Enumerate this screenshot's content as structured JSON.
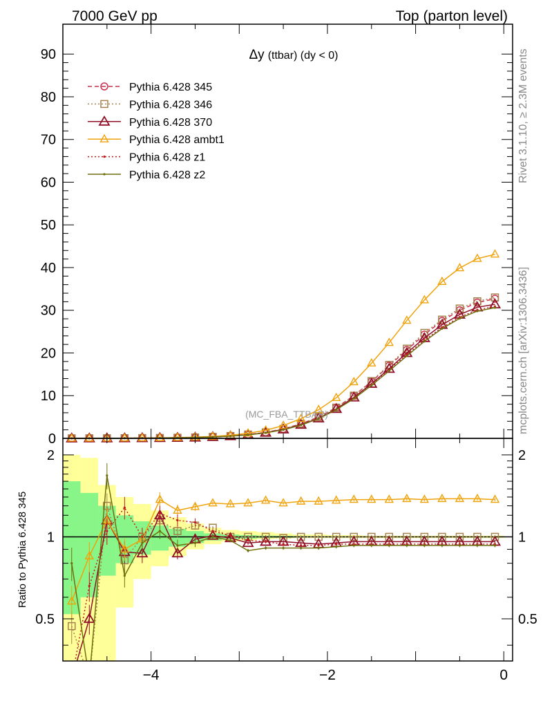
{
  "header": {
    "energy_label": "7000 GeV pp",
    "process_label": "Top (parton level)"
  },
  "side": {
    "rivet_label": "Rivet 3.1.10, ≥ 2.3M events",
    "source_label": "mcplots.cern.ch [arXiv:1306.3436]"
  },
  "watermark": "(MC_FBA_TTBAR)",
  "colors": {
    "s345": "#c82e4d",
    "s346": "#a5814d",
    "s370": "#8e0f26",
    "ambt1": "#f0a20b",
    "z1": "#c0191d",
    "z2": "#6f6f0e",
    "band_yellow": "#ffff99",
    "band_green": "#88f588"
  },
  "chart_data": [
    {
      "type": "line",
      "title": "Δy",
      "title_suffix": "(ttbar) (dy < 0)",
      "xlabel": "",
      "ylabel": "",
      "xlim": [
        -5,
        0.1
      ],
      "ylim": [
        0,
        97
      ],
      "yticks": [
        0,
        10,
        20,
        30,
        40,
        50,
        60,
        70,
        80,
        90
      ],
      "x": [
        -4.9,
        -4.7,
        -4.5,
        -4.3,
        -4.1,
        -3.9,
        -3.7,
        -3.5,
        -3.3,
        -3.1,
        -2.9,
        -2.7,
        -2.5,
        -2.3,
        -2.1,
        -1.9,
        -1.7,
        -1.5,
        -1.3,
        -1.1,
        -0.9,
        -0.7,
        -0.5,
        -0.3,
        -0.1
      ],
      "series": [
        {
          "name": "Pythia 6.428 345",
          "key": "s345",
          "values": [
            0.01,
            0.02,
            0.03,
            0.04,
            0.07,
            0.1,
            0.15,
            0.22,
            0.35,
            0.55,
            0.9,
            1.4,
            2.2,
            3.4,
            5.0,
            7.2,
            10.0,
            13.3,
            17.0,
            20.7,
            24.3,
            27.5,
            30.0,
            31.8,
            32.7
          ]
        },
        {
          "name": "Pythia 6.428 346",
          "key": "s346",
          "values": [
            0.01,
            0.02,
            0.03,
            0.04,
            0.07,
            0.1,
            0.15,
            0.22,
            0.35,
            0.55,
            0.9,
            1.4,
            2.2,
            3.4,
            5.0,
            7.2,
            10.0,
            13.4,
            17.2,
            21.0,
            24.7,
            27.8,
            30.4,
            32.1,
            33.0
          ]
        },
        {
          "name": "Pythia 6.428 370",
          "key": "s370",
          "values": [
            0.01,
            0.02,
            0.03,
            0.04,
            0.07,
            0.1,
            0.14,
            0.21,
            0.34,
            0.53,
            0.86,
            1.33,
            2.1,
            3.2,
            4.7,
            6.9,
            9.6,
            12.8,
            16.3,
            20.0,
            23.5,
            26.6,
            29.0,
            30.7,
            31.4
          ]
        },
        {
          "name": "Pythia 6.428 ambt1",
          "key": "ambt1",
          "values": [
            0.01,
            0.02,
            0.03,
            0.05,
            0.08,
            0.12,
            0.18,
            0.28,
            0.45,
            0.72,
            1.2,
            1.9,
            3.0,
            4.6,
            6.7,
            9.5,
            13.2,
            17.6,
            22.4,
            27.6,
            32.4,
            36.7,
            39.9,
            42.1,
            43.1
          ]
        },
        {
          "name": "Pythia 6.428 z1",
          "key": "z1",
          "values": [
            0.01,
            0.02,
            0.03,
            0.04,
            0.07,
            0.1,
            0.14,
            0.21,
            0.34,
            0.52,
            0.85,
            1.31,
            2.07,
            3.15,
            4.63,
            6.75,
            9.4,
            12.55,
            16.0,
            19.6,
            23.0,
            26.0,
            28.4,
            30.1,
            30.9
          ]
        },
        {
          "name": "Pythia 6.428 z2",
          "key": "z2",
          "values": [
            0.01,
            0.02,
            0.03,
            0.04,
            0.07,
            0.1,
            0.14,
            0.2,
            0.33,
            0.5,
            0.81,
            1.29,
            2.0,
            3.1,
            4.6,
            6.7,
            9.3,
            12.4,
            15.8,
            19.3,
            22.7,
            25.7,
            28.1,
            29.8,
            30.6
          ]
        }
      ]
    },
    {
      "type": "line",
      "title": "",
      "xlabel": "",
      "ylabel": "Ratio to Pythia 6.428 345",
      "xlim": [
        -5,
        0.1
      ],
      "ylim": [
        0.35,
        2.3
      ],
      "yscale": "log",
      "yticks": [
        0.5,
        1,
        2
      ],
      "xticks": [
        -4,
        -2,
        0
      ],
      "x": [
        -4.9,
        -4.7,
        -4.5,
        -4.3,
        -4.1,
        -3.9,
        -3.7,
        -3.5,
        -3.3,
        -3.1,
        -2.9,
        -2.7,
        -2.5,
        -2.3,
        -2.1,
        -1.9,
        -1.7,
        -1.5,
        -1.3,
        -1.1,
        -0.9,
        -0.7,
        -0.5,
        -0.3,
        -0.1
      ],
      "reference_line": 1,
      "band_yellow": {
        "lo": [
          0.35,
          0.35,
          0.35,
          0.55,
          0.7,
          0.78,
          0.85,
          0.9,
          0.94,
          0.96,
          0.97,
          0.98,
          0.985,
          0.99,
          0.99,
          0.99,
          0.99,
          0.99,
          0.99,
          0.99,
          0.99,
          0.99,
          0.99,
          0.99,
          0.99
        ],
        "hi": [
          2.0,
          1.95,
          1.55,
          1.4,
          1.32,
          1.25,
          1.18,
          1.12,
          1.08,
          1.06,
          1.05,
          1.04,
          1.03,
          1.02,
          1.02,
          1.015,
          1.015,
          1.01,
          1.01,
          1.01,
          1.01,
          1.01,
          1.01,
          1.01,
          1.01
        ]
      },
      "band_green": {
        "lo": [
          0.52,
          0.6,
          0.72,
          0.8,
          0.86,
          0.89,
          0.92,
          0.95,
          0.97,
          0.98,
          0.985,
          0.99,
          0.992,
          0.994,
          0.995,
          0.995,
          0.996,
          0.996,
          0.996,
          0.996,
          0.996,
          0.996,
          0.996,
          0.996,
          0.996
        ],
        "hi": [
          1.6,
          1.45,
          1.3,
          1.2,
          1.14,
          1.1,
          1.07,
          1.05,
          1.03,
          1.02,
          1.015,
          1.01,
          1.008,
          1.006,
          1.005,
          1.005,
          1.004,
          1.004,
          1.004,
          1.004,
          1.004,
          1.004,
          1.004,
          1.004,
          1.004
        ]
      },
      "series": [
        {
          "name": "Pythia 6.428 346",
          "key": "s346",
          "values": [
            0.47,
            0.3,
            1.3,
            0.82,
            1.0,
            1.15,
            1.05,
            1.1,
            1.08,
            1.0,
            1.0,
            1.0,
            0.99,
            1.0,
            1.0,
            1.0,
            1.0,
            1.0,
            1.0,
            1.0,
            1.0,
            1.0,
            1.0,
            1.0,
            1.0
          ]
        },
        {
          "name": "Pythia 6.428 370",
          "key": "s370",
          "values": [
            0.3,
            0.5,
            1.15,
            0.88,
            0.87,
            1.2,
            0.87,
            0.98,
            1.01,
            0.99,
            0.95,
            0.96,
            0.96,
            0.95,
            0.94,
            0.95,
            0.96,
            0.96,
            0.96,
            0.96,
            0.96,
            0.96,
            0.96,
            0.96,
            0.96
          ]
        },
        {
          "name": "Pythia 6.428 ambt1",
          "key": "ambt1",
          "values": [
            0.58,
            0.85,
            1.15,
            0.9,
            0.98,
            1.37,
            1.25,
            1.29,
            1.33,
            1.32,
            1.33,
            1.36,
            1.33,
            1.35,
            1.35,
            1.36,
            1.37,
            1.37,
            1.37,
            1.38,
            1.37,
            1.38,
            1.38,
            1.38,
            1.37
          ]
        },
        {
          "name": "Pythia 6.428 z1",
          "key": "z1",
          "values": [
            0.3,
            0.66,
            1.05,
            1.28,
            1.0,
            1.22,
            1.15,
            1.13,
            1.05,
            1.01,
            0.97,
            0.96,
            0.94,
            0.93,
            0.93,
            0.94,
            0.94,
            0.94,
            0.94,
            0.94,
            0.94,
            0.94,
            0.94,
            0.94,
            0.94
          ]
        },
        {
          "name": "Pythia 6.428 z2",
          "key": "z2",
          "values": [
            0.8,
            0.3,
            1.68,
            0.72,
            0.95,
            1.05,
            0.93,
            0.95,
            1.0,
            0.97,
            0.89,
            0.91,
            0.91,
            0.91,
            0.91,
            0.92,
            0.93,
            0.93,
            0.93,
            0.93,
            0.93,
            0.93,
            0.93,
            0.93,
            0.93
          ]
        }
      ]
    }
  ]
}
